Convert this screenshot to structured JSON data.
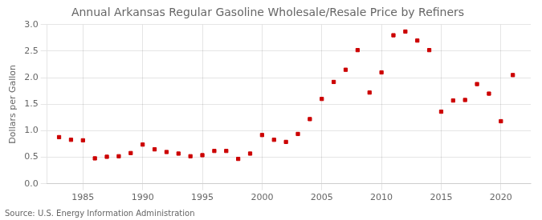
{
  "chart_data": {
    "type": "scatter",
    "title": "Annual Arkansas Regular Gasoline Wholesale/Resale Price by Refiners",
    "y_label": "Dollars per Gallon",
    "annotations": [
      "Source: U.S. Energy Information Administration"
    ],
    "x": [
      1983,
      1984,
      1985,
      1986,
      1987,
      1988,
      1989,
      1990,
      1991,
      1992,
      1993,
      1994,
      1995,
      1996,
      1997,
      1998,
      1999,
      2000,
      2001,
      2002,
      2003,
      2004,
      2005,
      2006,
      2007,
      2008,
      2009,
      2010,
      2011,
      2012,
      2013,
      2014,
      2015,
      2016,
      2017,
      2018,
      2019,
      2020,
      2021
    ],
    "values": [
      0.88,
      0.83,
      0.82,
      0.48,
      0.51,
      0.52,
      0.58,
      0.74,
      0.65,
      0.6,
      0.57,
      0.52,
      0.54,
      0.62,
      0.62,
      0.47,
      0.57,
      0.92,
      0.83,
      0.79,
      0.94,
      1.22,
      1.6,
      1.92,
      2.15,
      2.52,
      1.72,
      2.1,
      2.8,
      2.87,
      2.7,
      2.52,
      1.36,
      1.57,
      1.58,
      1.88,
      1.7,
      1.18,
      2.05
    ],
    "color": "#cc0000",
    "marker": "square",
    "xlim": [
      1982,
      2022.5
    ],
    "xticks": [
      1985,
      1990,
      1995,
      2000,
      2005,
      2010,
      2015,
      2020
    ],
    "ylim": [
      0.0,
      3.0
    ],
    "yticks": [
      {
        "value": 0,
        "label": "0.0"
      },
      0.5,
      {
        "value": 1,
        "label": "1.0"
      },
      1.5,
      {
        "value": 2,
        "label": "2.0"
      },
      2.5,
      {
        "value": 3,
        "label": "3.0"
      }
    ],
    "grid": true
  }
}
